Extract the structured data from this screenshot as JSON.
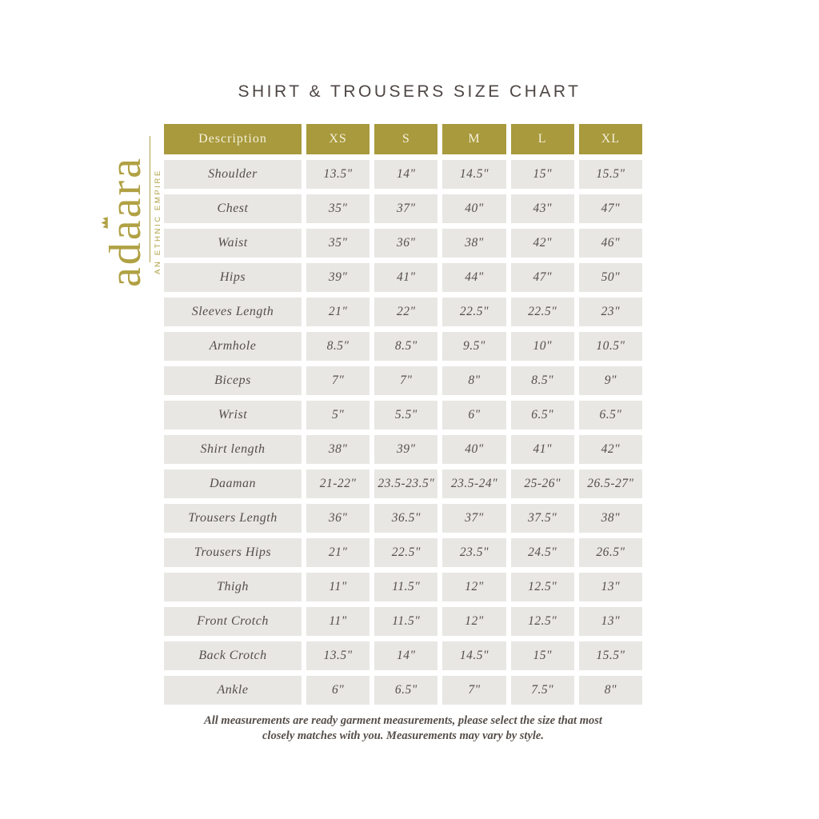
{
  "page": {
    "title": "SHIRT & TROUSERS SIZE CHART",
    "footer": {
      "line1": "All measurements are ready garment measurements, please select the size that most",
      "line2": "closely matches with you. Measurements may vary by style."
    }
  },
  "logo": {
    "brand": "adaara",
    "tagline": "AN ETHNIC EMPIRE",
    "crown_icon": "crown-icon"
  },
  "colors": {
    "accent_gold": "#a89a3d",
    "logo_gold": "#b0a144",
    "cell_bg": "#e8e7e4",
    "header_text": "#f6f0da",
    "body_text": "#564e49",
    "title_text": "#4e4644"
  },
  "table": {
    "columns": [
      "Description",
      "XS",
      "S",
      "M",
      "L",
      "XL"
    ],
    "rows": [
      {
        "label": "Shoulder",
        "values": [
          "13.5\"",
          "14\"",
          "14.5\"",
          "15\"",
          "15.5\""
        ]
      },
      {
        "label": "Chest",
        "values": [
          "35\"",
          "37\"",
          "40\"",
          "43\"",
          "47\""
        ]
      },
      {
        "label": "Waist",
        "values": [
          "35\"",
          "36\"",
          "38\"",
          "42\"",
          "46\""
        ]
      },
      {
        "label": "Hips",
        "values": [
          "39\"",
          "41\"",
          "44\"",
          "47\"",
          "50\""
        ]
      },
      {
        "label": "Sleeves Length",
        "values": [
          "21\"",
          "22\"",
          "22.5\"",
          "22.5\"",
          "23\""
        ]
      },
      {
        "label": "Armhole",
        "values": [
          "8.5\"",
          "8.5\"",
          "9.5\"",
          "10\"",
          "10.5\""
        ]
      },
      {
        "label": "Biceps",
        "values": [
          "7\"",
          "7\"",
          "8\"",
          "8.5\"",
          "9\""
        ]
      },
      {
        "label": "Wrist",
        "values": [
          "5\"",
          "5.5\"",
          "6\"",
          "6.5\"",
          "6.5\""
        ]
      },
      {
        "label": "Shirt length",
        "values": [
          "38\"",
          "39\"",
          "40\"",
          "41\"",
          "42\""
        ]
      },
      {
        "label": "Daaman",
        "values": [
          "21-22\"",
          "23.5-23.5\"",
          "23.5-24\"",
          "25-26\"",
          "26.5-27\""
        ]
      },
      {
        "label": "Trousers Length",
        "values": [
          "36\"",
          "36.5\"",
          "37\"",
          "37.5\"",
          "38\""
        ]
      },
      {
        "label": "Trousers Hips",
        "values": [
          "21\"",
          "22.5\"",
          "23.5\"",
          "24.5\"",
          "26.5\""
        ]
      },
      {
        "label": "Thigh",
        "values": [
          "11\"",
          "11.5\"",
          "12\"",
          "12.5\"",
          "13\""
        ]
      },
      {
        "label": "Front Crotch",
        "values": [
          "11\"",
          "11.5\"",
          "12\"",
          "12.5\"",
          "13\""
        ]
      },
      {
        "label": "Back Crotch",
        "values": [
          "13.5\"",
          "14\"",
          "14.5\"",
          "15\"",
          "15.5\""
        ]
      },
      {
        "label": "Ankle",
        "values": [
          "6\"",
          "6.5\"",
          "7\"",
          "7.5\"",
          "8\""
        ]
      }
    ]
  }
}
